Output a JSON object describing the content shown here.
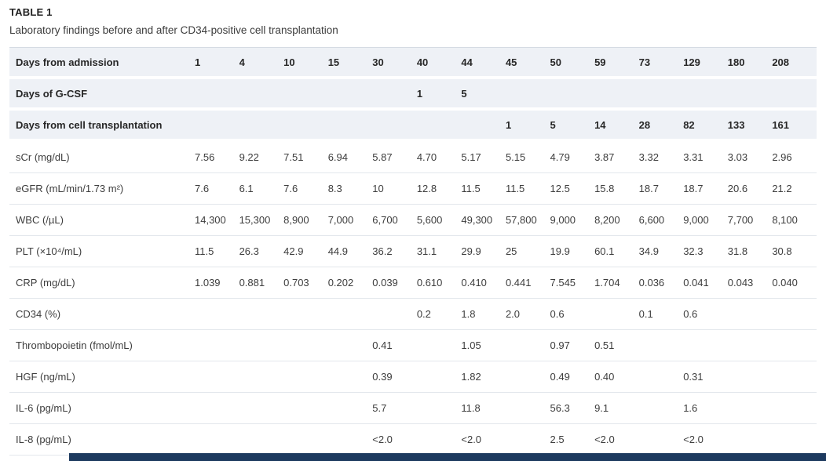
{
  "caption": {
    "title": "TABLE 1",
    "subtitle": "Laboratory findings before and after CD34-positive cell transplantation"
  },
  "table": {
    "header_rows": [
      {
        "label": "Days from admission",
        "cells": [
          "1",
          "4",
          "10",
          "15",
          "30",
          "40",
          "44",
          "45",
          "50",
          "59",
          "73",
          "129",
          "180",
          "208"
        ]
      },
      {
        "label": "Days of G-CSF",
        "cells": [
          "",
          "",
          "",
          "",
          "",
          "1",
          "5",
          "",
          "",
          "",
          "",
          "",
          "",
          ""
        ]
      },
      {
        "label": "Days from cell transplantation",
        "cells": [
          "",
          "",
          "",
          "",
          "",
          "",
          "",
          "1",
          "5",
          "14",
          "28",
          "82",
          "133",
          "161"
        ]
      }
    ],
    "data_rows": [
      {
        "label": "sCr (mg/dL)",
        "cells": [
          "7.56",
          "9.22",
          "7.51",
          "6.94",
          "5.87",
          "4.70",
          "5.17",
          "5.15",
          "4.79",
          "3.87",
          "3.32",
          "3.31",
          "3.03",
          "2.96"
        ]
      },
      {
        "label": "eGFR (mL/min/1.73 m²)",
        "cells": [
          "7.6",
          "6.1",
          "7.6",
          "8.3",
          "10",
          "12.8",
          "11.5",
          "11.5",
          "12.5",
          "15.8",
          "18.7",
          "18.7",
          "20.6",
          "21.2"
        ]
      },
      {
        "label": "WBC (/µL)",
        "cells": [
          "14,300",
          "15,300",
          "8,900",
          "7,000",
          "6,700",
          "5,600",
          "49,300",
          "57,800",
          "9,000",
          "8,200",
          "6,600",
          "9,000",
          "7,700",
          "8,100"
        ]
      },
      {
        "label": "PLT (×10⁴/mL)",
        "cells": [
          "11.5",
          "26.3",
          "42.9",
          "44.9",
          "36.2",
          "31.1",
          "29.9",
          "25",
          "19.9",
          "60.1",
          "34.9",
          "32.3",
          "31.8",
          "30.8"
        ]
      },
      {
        "label": "CRP (mg/dL)",
        "cells": [
          "1.039",
          "0.881",
          "0.703",
          "0.202",
          "0.039",
          "0.610",
          "0.410",
          "0.441",
          "7.545",
          "1.704",
          "0.036",
          "0.041",
          "0.043",
          "0.040"
        ]
      },
      {
        "label": "CD34 (%)",
        "cells": [
          "",
          "",
          "",
          "",
          "",
          "0.2",
          "1.8",
          "2.0",
          "0.6",
          "",
          "0.1",
          "0.6",
          "",
          ""
        ]
      },
      {
        "label": "Thrombopoietin (fmol/mL)",
        "cells": [
          "",
          "",
          "",
          "",
          "0.41",
          "",
          "1.05",
          "",
          "0.97",
          "0.51",
          "",
          "",
          "",
          ""
        ]
      },
      {
        "label": "HGF (ng/mL)",
        "cells": [
          "",
          "",
          "",
          "",
          "0.39",
          "",
          "1.82",
          "",
          "0.49",
          "0.40",
          "",
          "0.31",
          "",
          ""
        ]
      },
      {
        "label": "IL-6 (pg/mL)",
        "cells": [
          "",
          "",
          "",
          "",
          "5.7",
          "",
          "11.8",
          "",
          "56.3",
          "9.1",
          "",
          "1.6",
          "",
          ""
        ]
      },
      {
        "label": "IL-8 (pg/mL)",
        "cells": [
          "",
          "",
          "",
          "",
          "<2.0",
          "",
          "<2.0",
          "",
          "2.5",
          "<2.0",
          "",
          "<2.0",
          "",
          ""
        ]
      }
    ]
  },
  "colors": {
    "header_row_bg": "#eef1f6",
    "row_border": "#e3e7ec",
    "table_top_border": "#d5dbe3",
    "bottom_bar": "#1d3a5f",
    "title_text": "#212121",
    "body_text": "#3d3d3d"
  }
}
